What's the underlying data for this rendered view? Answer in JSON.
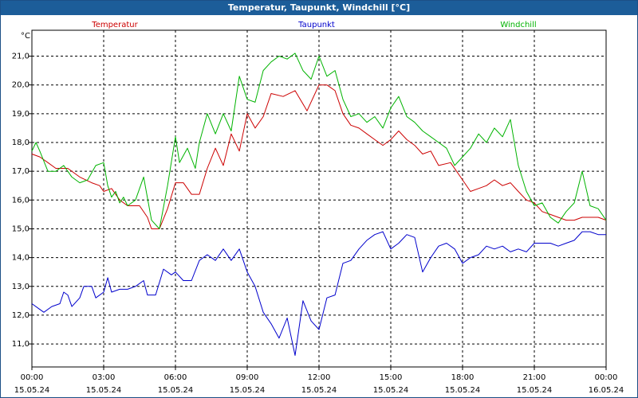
{
  "window": {
    "title": "Temperatur, Taupunkt, Windchill [°C]"
  },
  "chart_data": {
    "type": "line",
    "title": "Temperatur, Taupunkt, Windchill [°C]",
    "ylabel": "°C",
    "xlabel": "",
    "ylim": [
      10.2,
      21.9
    ],
    "xlim": [
      0,
      24
    ],
    "y_ticks": [
      11.0,
      12.0,
      13.0,
      14.0,
      15.0,
      16.0,
      17.0,
      18.0,
      19.0,
      20.0,
      21.0
    ],
    "y_tick_labels": [
      "11,0",
      "12,0",
      "13,0",
      "14,0",
      "15,0",
      "16,0",
      "17,0",
      "18,0",
      "19,0",
      "20,0",
      "21,0"
    ],
    "x_ticks": [
      0,
      3,
      6,
      9,
      12,
      15,
      18,
      21,
      24
    ],
    "x_tick_labels": [
      {
        "time": "00:00",
        "date": "15.05.24"
      },
      {
        "time": "03:00",
        "date": "15.05.24"
      },
      {
        "time": "06:00",
        "date": "15.05.24"
      },
      {
        "time": "09:00",
        "date": "15.05.24"
      },
      {
        "time": "12:00",
        "date": "15.05.24"
      },
      {
        "time": "15:00",
        "date": "15.05.24"
      },
      {
        "time": "18:00",
        "date": "15.05.24"
      },
      {
        "time": "21:00",
        "date": "15.05.24"
      },
      {
        "time": "00:00",
        "date": "16.05.24"
      }
    ],
    "grid": true,
    "legend_position": "top",
    "series": [
      {
        "name": "Temperatur",
        "color": "#cc0000",
        "points": [
          [
            0,
            17.6
          ],
          [
            0.33,
            17.5
          ],
          [
            0.67,
            17.3
          ],
          [
            1.0,
            17.1
          ],
          [
            1.5,
            17.1
          ],
          [
            2.0,
            16.8
          ],
          [
            2.5,
            16.6
          ],
          [
            2.83,
            16.5
          ],
          [
            3.0,
            16.3
          ],
          [
            3.33,
            16.4
          ],
          [
            3.67,
            16.0
          ],
          [
            4.0,
            15.8
          ],
          [
            4.5,
            15.8
          ],
          [
            4.83,
            15.4
          ],
          [
            5.0,
            15.0
          ],
          [
            5.33,
            15.0
          ],
          [
            5.67,
            15.7
          ],
          [
            6.0,
            16.6
          ],
          [
            6.33,
            16.6
          ],
          [
            6.67,
            16.2
          ],
          [
            7.0,
            16.2
          ],
          [
            7.33,
            17.1
          ],
          [
            7.67,
            17.8
          ],
          [
            8.0,
            17.2
          ],
          [
            8.33,
            18.3
          ],
          [
            8.67,
            17.7
          ],
          [
            9.0,
            19.0
          ],
          [
            9.33,
            18.5
          ],
          [
            9.67,
            18.9
          ],
          [
            10.0,
            19.7
          ],
          [
            10.5,
            19.6
          ],
          [
            11.0,
            19.8
          ],
          [
            11.5,
            19.1
          ],
          [
            12.0,
            20.0
          ],
          [
            12.33,
            20.0
          ],
          [
            12.67,
            19.8
          ],
          [
            13.0,
            19.0
          ],
          [
            13.33,
            18.6
          ],
          [
            13.67,
            18.5
          ],
          [
            14.0,
            18.3
          ],
          [
            14.33,
            18.1
          ],
          [
            14.67,
            17.9
          ],
          [
            15.0,
            18.1
          ],
          [
            15.33,
            18.4
          ],
          [
            15.67,
            18.1
          ],
          [
            16.0,
            17.9
          ],
          [
            16.33,
            17.6
          ],
          [
            16.67,
            17.7
          ],
          [
            17.0,
            17.2
          ],
          [
            17.5,
            17.3
          ],
          [
            18.0,
            16.7
          ],
          [
            18.33,
            16.3
          ],
          [
            18.67,
            16.4
          ],
          [
            19.0,
            16.5
          ],
          [
            19.33,
            16.7
          ],
          [
            19.67,
            16.5
          ],
          [
            20.0,
            16.6
          ],
          [
            20.33,
            16.3
          ],
          [
            20.67,
            16.0
          ],
          [
            21.0,
            15.9
          ],
          [
            21.33,
            15.6
          ],
          [
            21.67,
            15.5
          ],
          [
            22.0,
            15.4
          ],
          [
            22.33,
            15.3
          ],
          [
            22.67,
            15.3
          ],
          [
            23.0,
            15.4
          ],
          [
            23.33,
            15.4
          ],
          [
            23.67,
            15.4
          ],
          [
            24.0,
            15.3
          ]
        ]
      },
      {
        "name": "Taupunkt",
        "color": "#0000cc",
        "points": [
          [
            0,
            12.4
          ],
          [
            0.33,
            12.2
          ],
          [
            0.5,
            12.1
          ],
          [
            0.83,
            12.3
          ],
          [
            1.17,
            12.4
          ],
          [
            1.33,
            12.8
          ],
          [
            1.5,
            12.7
          ],
          [
            1.67,
            12.3
          ],
          [
            2.0,
            12.6
          ],
          [
            2.17,
            13.0
          ],
          [
            2.5,
            13.0
          ],
          [
            2.67,
            12.6
          ],
          [
            3.0,
            12.8
          ],
          [
            3.17,
            13.3
          ],
          [
            3.33,
            12.8
          ],
          [
            3.67,
            12.9
          ],
          [
            4.0,
            12.9
          ],
          [
            4.33,
            13.0
          ],
          [
            4.67,
            13.2
          ],
          [
            4.83,
            12.7
          ],
          [
            5.17,
            12.7
          ],
          [
            5.5,
            13.6
          ],
          [
            5.83,
            13.4
          ],
          [
            6.0,
            13.5
          ],
          [
            6.33,
            13.2
          ],
          [
            6.67,
            13.2
          ],
          [
            7.0,
            13.9
          ],
          [
            7.33,
            14.1
          ],
          [
            7.67,
            13.9
          ],
          [
            8.0,
            14.3
          ],
          [
            8.33,
            13.9
          ],
          [
            8.67,
            14.3
          ],
          [
            9.0,
            13.5
          ],
          [
            9.33,
            13.0
          ],
          [
            9.67,
            12.1
          ],
          [
            10.0,
            11.7
          ],
          [
            10.33,
            11.2
          ],
          [
            10.67,
            11.9
          ],
          [
            11.0,
            10.6
          ],
          [
            11.33,
            12.5
          ],
          [
            11.67,
            11.8
          ],
          [
            12.0,
            11.5
          ],
          [
            12.33,
            12.6
          ],
          [
            12.67,
            12.7
          ],
          [
            13.0,
            13.8
          ],
          [
            13.33,
            13.9
          ],
          [
            13.67,
            14.3
          ],
          [
            14.0,
            14.6
          ],
          [
            14.33,
            14.8
          ],
          [
            14.67,
            14.9
          ],
          [
            15.0,
            14.3
          ],
          [
            15.33,
            14.5
          ],
          [
            15.67,
            14.8
          ],
          [
            16.0,
            14.7
          ],
          [
            16.33,
            13.5
          ],
          [
            16.67,
            14.0
          ],
          [
            17.0,
            14.4
          ],
          [
            17.33,
            14.5
          ],
          [
            17.67,
            14.3
          ],
          [
            18.0,
            13.8
          ],
          [
            18.33,
            14.0
          ],
          [
            18.67,
            14.1
          ],
          [
            19.0,
            14.4
          ],
          [
            19.33,
            14.3
          ],
          [
            19.67,
            14.4
          ],
          [
            20.0,
            14.2
          ],
          [
            20.33,
            14.3
          ],
          [
            20.67,
            14.2
          ],
          [
            21.0,
            14.5
          ],
          [
            21.33,
            14.5
          ],
          [
            21.67,
            14.5
          ],
          [
            22.0,
            14.4
          ],
          [
            22.33,
            14.5
          ],
          [
            22.67,
            14.6
          ],
          [
            23.0,
            14.9
          ],
          [
            23.33,
            14.9
          ],
          [
            23.67,
            14.8
          ],
          [
            24.0,
            14.8
          ]
        ]
      },
      {
        "name": "Windchill",
        "color": "#00b300",
        "points": [
          [
            0,
            17.7
          ],
          [
            0.17,
            18.0
          ],
          [
            0.33,
            17.7
          ],
          [
            0.67,
            17.0
          ],
          [
            1.0,
            17.0
          ],
          [
            1.33,
            17.2
          ],
          [
            1.67,
            16.8
          ],
          [
            2.0,
            16.6
          ],
          [
            2.33,
            16.7
          ],
          [
            2.67,
            17.2
          ],
          [
            3.0,
            17.3
          ],
          [
            3.17,
            16.5
          ],
          [
            3.33,
            16.1
          ],
          [
            3.5,
            16.3
          ],
          [
            3.67,
            15.9
          ],
          [
            3.83,
            16.1
          ],
          [
            4.0,
            15.8
          ],
          [
            4.33,
            16.0
          ],
          [
            4.67,
            16.8
          ],
          [
            5.0,
            15.3
          ],
          [
            5.33,
            15.0
          ],
          [
            5.67,
            16.5
          ],
          [
            6.0,
            18.2
          ],
          [
            6.17,
            17.3
          ],
          [
            6.5,
            17.8
          ],
          [
            6.83,
            17.1
          ],
          [
            7.0,
            18.0
          ],
          [
            7.33,
            19.0
          ],
          [
            7.67,
            18.3
          ],
          [
            8.0,
            19.0
          ],
          [
            8.33,
            18.4
          ],
          [
            8.67,
            20.3
          ],
          [
            9.0,
            19.5
          ],
          [
            9.33,
            19.4
          ],
          [
            9.67,
            20.5
          ],
          [
            10.0,
            20.8
          ],
          [
            10.33,
            21.0
          ],
          [
            10.67,
            20.9
          ],
          [
            11.0,
            21.1
          ],
          [
            11.33,
            20.5
          ],
          [
            11.67,
            20.2
          ],
          [
            12.0,
            21.0
          ],
          [
            12.33,
            20.3
          ],
          [
            12.67,
            20.5
          ],
          [
            13.0,
            19.5
          ],
          [
            13.33,
            18.9
          ],
          [
            13.67,
            19.0
          ],
          [
            14.0,
            18.7
          ],
          [
            14.33,
            18.9
          ],
          [
            14.67,
            18.5
          ],
          [
            15.0,
            19.2
          ],
          [
            15.33,
            19.6
          ],
          [
            15.67,
            18.9
          ],
          [
            16.0,
            18.7
          ],
          [
            16.33,
            18.4
          ],
          [
            16.67,
            18.2
          ],
          [
            17.0,
            18.0
          ],
          [
            17.33,
            17.8
          ],
          [
            17.67,
            17.2
          ],
          [
            18.0,
            17.5
          ],
          [
            18.33,
            17.8
          ],
          [
            18.67,
            18.3
          ],
          [
            19.0,
            18.0
          ],
          [
            19.33,
            18.5
          ],
          [
            19.67,
            18.2
          ],
          [
            20.0,
            18.8
          ],
          [
            20.33,
            17.2
          ],
          [
            20.67,
            16.3
          ],
          [
            21.0,
            15.8
          ],
          [
            21.33,
            15.9
          ],
          [
            21.67,
            15.4
          ],
          [
            22.0,
            15.2
          ],
          [
            22.33,
            15.6
          ],
          [
            22.67,
            15.9
          ],
          [
            23.0,
            17.0
          ],
          [
            23.33,
            15.8
          ],
          [
            23.67,
            15.7
          ],
          [
            24.0,
            15.3
          ]
        ]
      }
    ]
  }
}
